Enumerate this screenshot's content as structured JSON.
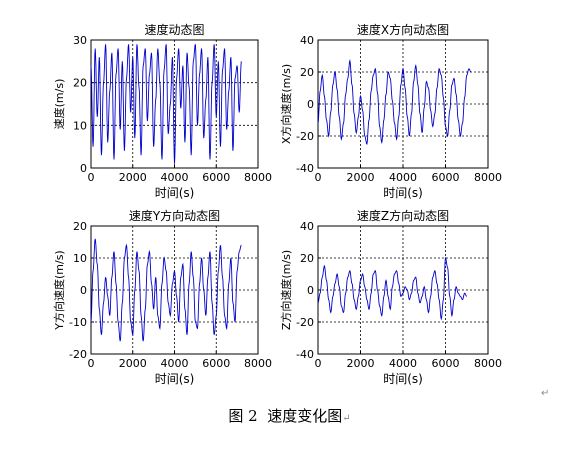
{
  "chart_data": [
    {
      "type": "line",
      "title": "速度动态图",
      "xlabel": "时间(s)",
      "ylabel": "速度(m/s)",
      "xlim": [
        0,
        8000
      ],
      "ylim": [
        0,
        30
      ],
      "xticks": [
        0,
        2000,
        4000,
        6000,
        8000
      ],
      "yticks": [
        0,
        10,
        20,
        30
      ],
      "grid": true,
      "series": [
        {
          "color": "#0000cc",
          "x": [
            0,
            100,
            200,
            300,
            400,
            500,
            600,
            700,
            800,
            900,
            1000,
            1100,
            1200,
            1300,
            1400,
            1500,
            1600,
            1700,
            1800,
            1900,
            2000,
            2100,
            2200,
            2300,
            2400,
            2500,
            2600,
            2700,
            2800,
            2900,
            3000,
            3100,
            3200,
            3300,
            3400,
            3500,
            3600,
            3700,
            3800,
            3900,
            4000,
            4100,
            4200,
            4300,
            4400,
            4500,
            4600,
            4700,
            4800,
            4900,
            5000,
            5100,
            5200,
            5300,
            5400,
            5500,
            5600,
            5700,
            5800,
            5900,
            6000,
            6100,
            6200,
            6300,
            6400,
            6500,
            6600,
            6700,
            6800,
            6900,
            7000,
            7100,
            7200
          ],
          "y": [
            24,
            5,
            28,
            12,
            26,
            3,
            20,
            29,
            6,
            18,
            27,
            2,
            22,
            28,
            9,
            25,
            4,
            21,
            29,
            13,
            26,
            7,
            29,
            19,
            3,
            24,
            28,
            11,
            22,
            27,
            5,
            16,
            28,
            20,
            2,
            23,
            29,
            8,
            15,
            26,
            1,
            21,
            28,
            14,
            24,
            6,
            27,
            19,
            3,
            25,
            29,
            10,
            22,
            28,
            7,
            16,
            26,
            2,
            20,
            29,
            12,
            25,
            5,
            23,
            28,
            9,
            18,
            26,
            4,
            21,
            24,
            13,
            25
          ]
        }
      ]
    },
    {
      "type": "line",
      "title": "速度X方向动态图",
      "xlabel": "时间(s)",
      "ylabel": "X方向速度(m/s)",
      "xlim": [
        0,
        8000
      ],
      "ylim": [
        -40,
        40
      ],
      "xticks": [
        0,
        2000,
        4000,
        6000,
        8000
      ],
      "yticks": [
        -40,
        -20,
        0,
        20,
        40
      ],
      "grid": true,
      "series": [
        {
          "color": "#0000cc",
          "x": [
            0,
            100,
            200,
            300,
            400,
            500,
            600,
            700,
            800,
            900,
            1000,
            1100,
            1200,
            1300,
            1400,
            1500,
            1600,
            1700,
            1800,
            1900,
            2000,
            2100,
            2200,
            2300,
            2400,
            2500,
            2600,
            2700,
            2800,
            2900,
            3000,
            3100,
            3200,
            3300,
            3400,
            3500,
            3600,
            3700,
            3800,
            3900,
            4000,
            4100,
            4200,
            4300,
            4400,
            4500,
            4600,
            4700,
            4800,
            4900,
            5000,
            5100,
            5200,
            5300,
            5400,
            5500,
            5600,
            5700,
            5800,
            5900,
            6000,
            6100,
            6200,
            6300,
            6400,
            6500,
            6600,
            6700,
            6800,
            6900,
            7000,
            7100,
            7200
          ],
          "y": [
            -12,
            8,
            18,
            5,
            -10,
            -20,
            -5,
            12,
            20,
            9,
            -8,
            -22,
            -12,
            6,
            16,
            27,
            12,
            -6,
            -18,
            -8,
            5,
            -4,
            -20,
            -25,
            -10,
            8,
            18,
            22,
            7,
            -14,
            -24,
            -10,
            6,
            20,
            16,
            2,
            -12,
            -22,
            -8,
            12,
            22,
            10,
            -8,
            -20,
            -6,
            14,
            24,
            12,
            -6,
            -18,
            -2,
            14,
            10,
            -4,
            -14,
            -6,
            10,
            22,
            18,
            4,
            -14,
            -20,
            -4,
            12,
            16,
            6,
            -10,
            -20,
            -12,
            4,
            18,
            22,
            20
          ]
        }
      ]
    },
    {
      "type": "line",
      "title": "速度Y方向动态图",
      "xlabel": "时间(s)",
      "ylabel": "Y方向速度(m/s)",
      "xlim": [
        0,
        8000
      ],
      "ylim": [
        -20,
        20
      ],
      "xticks": [
        0,
        2000,
        4000,
        6000,
        8000
      ],
      "yticks": [
        -20,
        -10,
        0,
        10,
        20
      ],
      "grid": true,
      "series": [
        {
          "color": "#0000cc",
          "x": [
            0,
            100,
            200,
            300,
            400,
            500,
            600,
            700,
            800,
            900,
            1000,
            1100,
            1200,
            1300,
            1400,
            1500,
            1600,
            1700,
            1800,
            1900,
            2000,
            2100,
            2200,
            2300,
            2400,
            2500,
            2600,
            2700,
            2800,
            2900,
            3000,
            3100,
            3200,
            3300,
            3400,
            3500,
            3600,
            3700,
            3800,
            3900,
            4000,
            4100,
            4200,
            4300,
            4400,
            4500,
            4600,
            4700,
            4800,
            4900,
            5000,
            5100,
            5200,
            5300,
            5400,
            5500,
            5600,
            5700,
            5800,
            5900,
            6000,
            6100,
            6200,
            6300,
            6400,
            6500,
            6600,
            6700,
            6800,
            6900,
            7000,
            7100,
            7200
          ],
          "y": [
            -10,
            6,
            16,
            8,
            -6,
            -14,
            -4,
            4,
            -2,
            -8,
            4,
            12,
            2,
            -10,
            -16,
            -4,
            10,
            14,
            4,
            -10,
            -14,
            0,
            12,
            6,
            -8,
            -16,
            -6,
            8,
            12,
            2,
            -6,
            4,
            -8,
            -12,
            2,
            10,
            6,
            -4,
            -8,
            2,
            6,
            -2,
            -10,
            4,
            8,
            -6,
            -14,
            2,
            12,
            4,
            -10,
            -12,
            2,
            10,
            0,
            -8,
            4,
            12,
            -4,
            -14,
            -8,
            6,
            14,
            4,
            -8,
            -12,
            2,
            10,
            -4,
            -10,
            6,
            12,
            14
          ]
        }
      ]
    },
    {
      "type": "line",
      "title": "速度Z方向动态图",
      "xlabel": "时间(s)",
      "ylabel": "Z方向速度(m/s)",
      "xlim": [
        0,
        8000
      ],
      "ylim": [
        -40,
        40
      ],
      "xticks": [
        0,
        2000,
        4000,
        6000,
        8000
      ],
      "yticks": [
        -40,
        -20,
        0,
        20,
        40
      ],
      "grid": true,
      "series": [
        {
          "color": "#0000cc",
          "x": [
            0,
            100,
            200,
            300,
            400,
            500,
            600,
            700,
            800,
            900,
            1000,
            1100,
            1200,
            1300,
            1400,
            1500,
            1600,
            1700,
            1800,
            1900,
            2000,
            2100,
            2200,
            2300,
            2400,
            2500,
            2600,
            2700,
            2800,
            2900,
            3000,
            3100,
            3200,
            3300,
            3400,
            3500,
            3600,
            3700,
            3800,
            3900,
            4000,
            4100,
            4200,
            4300,
            4400,
            4500,
            4600,
            4700,
            4800,
            4900,
            5000,
            5100,
            5200,
            5300,
            5400,
            5500,
            5600,
            5700,
            5800,
            5900,
            6000,
            6100,
            6200,
            6300,
            6400,
            6500,
            6600,
            6700,
            6800,
            6900,
            7000
          ],
          "y": [
            -8,
            -2,
            8,
            15,
            6,
            -6,
            -14,
            -4,
            4,
            10,
            2,
            -10,
            -14,
            -2,
            8,
            12,
            4,
            -6,
            -12,
            -4,
            6,
            10,
            2,
            -6,
            -12,
            -2,
            10,
            12,
            0,
            -10,
            -16,
            -4,
            6,
            -4,
            -12,
            2,
            10,
            12,
            4,
            -4,
            -2,
            2,
            0,
            -6,
            -2,
            6,
            8,
            -2,
            -8,
            -4,
            2,
            -6,
            -14,
            -4,
            8,
            12,
            4,
            -6,
            -18,
            -6,
            20,
            14,
            -4,
            -16,
            -6,
            2,
            -2,
            -4,
            -6,
            -2,
            -4
          ]
        }
      ]
    }
  ],
  "caption": {
    "figure_number": "图 2",
    "title": "速度变化图",
    "para_mark": "↵"
  },
  "mark_corner": "↵"
}
